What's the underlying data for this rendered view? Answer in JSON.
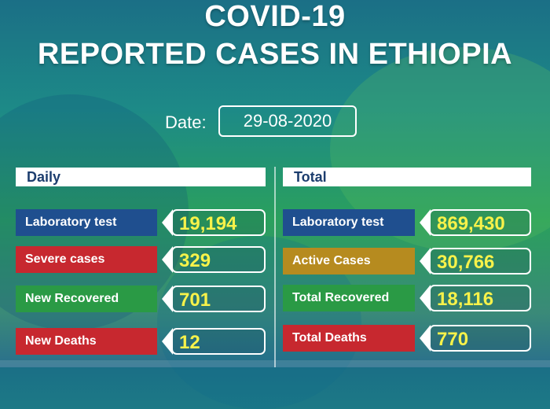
{
  "title": {
    "line1": "COVID-19",
    "line2": "REPORTED CASES IN ETHIOPIA"
  },
  "date": {
    "label": "Date:",
    "value": "29-08-2020"
  },
  "daily": {
    "header": "Daily",
    "rows": [
      {
        "label": "Laboratory test",
        "value": "19,194",
        "color": "#1f4f8f"
      },
      {
        "label": "Severe cases",
        "value": "329",
        "color": "#c7282f"
      },
      {
        "label": "New Recovered",
        "value": "701",
        "color": "#2a9a45"
      },
      {
        "label": "New Deaths",
        "value": "12",
        "color": "#c7282f"
      }
    ]
  },
  "total": {
    "header": "Total",
    "rows": [
      {
        "label": "Laboratory test",
        "value": "869,430",
        "color": "#1f4f8f"
      },
      {
        "label": "Active Cases",
        "value": "30,766",
        "color": "#b68b1f"
      },
      {
        "label": "Total Recovered",
        "value": "18,116",
        "color": "#2a9a45"
      },
      {
        "label": "Total Deaths",
        "value": "770",
        "color": "#c7282f"
      }
    ]
  },
  "colors": {
    "value_text": "#f7f24a",
    "header_text": "#1c3d6e"
  }
}
